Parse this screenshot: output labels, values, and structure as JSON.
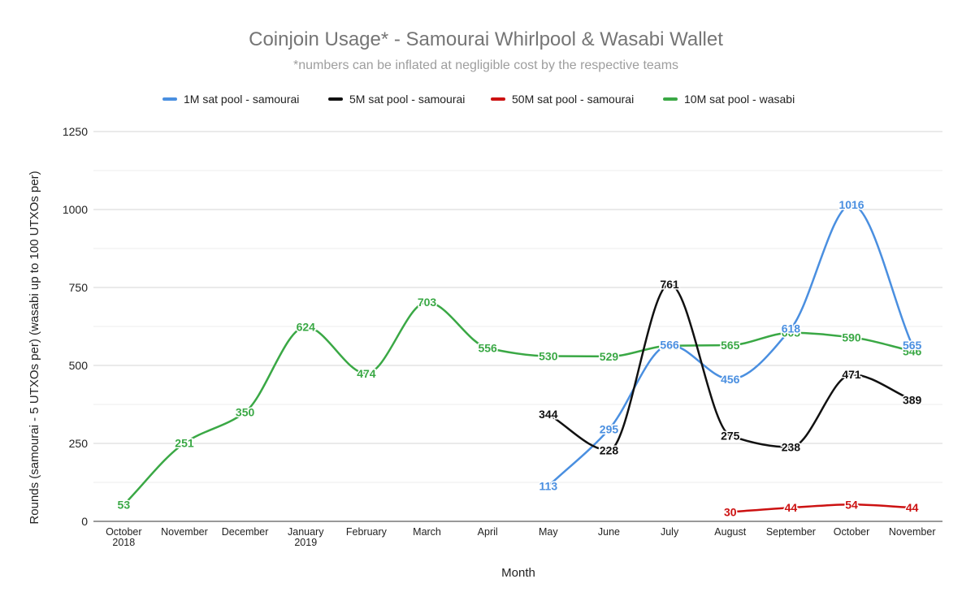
{
  "chart_data": {
    "type": "line",
    "title": "Coinjoin Usage* - Samourai Whirlpool & Wasabi Wallet",
    "subtitle": "*numbers can be inflated at negligible cost by the respective teams",
    "xlabel": "Month",
    "ylabel": "Rounds (samourai - 5 UTXOs per) (wasabi up to 100 UTXOs per)",
    "ylim": [
      0,
      1250
    ],
    "yticks": [
      0,
      250,
      500,
      750,
      1000,
      1250
    ],
    "grid": true,
    "legend_position": "top",
    "categories": [
      [
        "October",
        "2018"
      ],
      [
        "November"
      ],
      [
        "December"
      ],
      [
        "January",
        "2019"
      ],
      [
        "February"
      ],
      [
        "March"
      ],
      [
        "April"
      ],
      [
        "May"
      ],
      [
        "June"
      ],
      [
        "July"
      ],
      [
        "August"
      ],
      [
        "September"
      ],
      [
        "October"
      ],
      [
        "November"
      ]
    ],
    "series": [
      {
        "name": "1M sat pool - samourai",
        "color": "#4a8fe0",
        "values": [
          null,
          null,
          null,
          null,
          null,
          null,
          null,
          113,
          295,
          566,
          456,
          618,
          1016,
          565
        ]
      },
      {
        "name": "5M sat pool - samourai",
        "color": "#111111",
        "values": [
          null,
          null,
          null,
          null,
          null,
          null,
          null,
          344,
          228,
          761,
          275,
          238,
          471,
          389
        ]
      },
      {
        "name": "50M sat pool - samourai",
        "color": "#cc1111",
        "values": [
          null,
          null,
          null,
          null,
          null,
          null,
          null,
          null,
          null,
          null,
          30,
          44,
          54,
          44
        ]
      },
      {
        "name": "10M sat pool - wasabi",
        "color": "#3aa845",
        "values": [
          53,
          251,
          350,
          624,
          474,
          703,
          556,
          530,
          529,
          563,
          565,
          605,
          590,
          546
        ]
      }
    ]
  }
}
